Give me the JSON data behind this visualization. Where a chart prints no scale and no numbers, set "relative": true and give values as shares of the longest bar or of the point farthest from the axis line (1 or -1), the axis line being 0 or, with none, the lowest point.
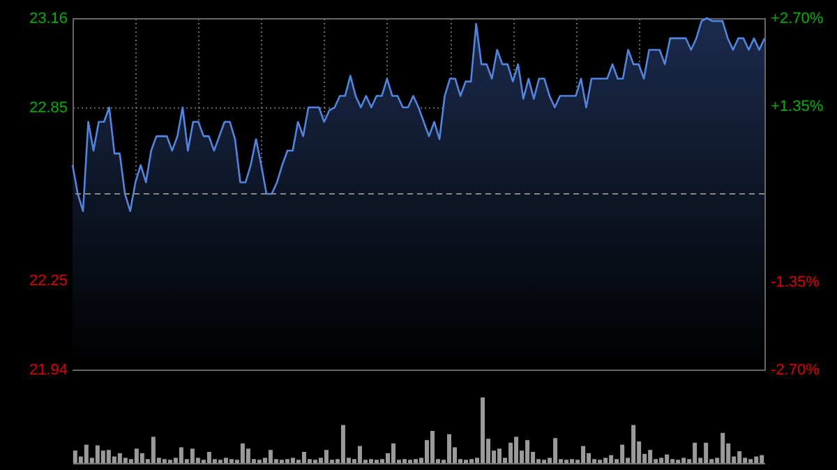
{
  "chart_data": [
    {
      "type": "area",
      "categories": [
        null,
        null,
        null,
        null,
        null,
        null,
        null,
        null,
        null,
        null,
        null,
        null,
        null,
        null,
        null,
        null,
        null,
        null,
        null,
        null,
        null,
        null,
        null,
        null,
        null,
        null,
        null,
        null,
        null,
        null,
        null,
        null,
        null,
        null,
        null,
        null,
        null,
        null,
        null,
        null,
        null,
        null,
        null,
        null,
        null,
        null,
        null,
        null,
        null,
        null,
        null,
        null,
        null,
        null,
        null,
        null,
        null,
        null,
        null,
        null,
        null,
        null,
        null,
        null,
        null,
        null,
        null,
        null,
        null,
        null,
        null,
        null,
        null,
        null,
        null,
        null,
        null,
        null,
        null,
        null,
        null,
        null,
        null,
        null,
        null,
        null,
        null,
        null,
        null,
        null,
        null,
        null,
        null,
        null,
        null,
        null,
        null,
        null,
        null,
        null,
        null,
        null,
        null,
        null,
        null,
        null,
        null,
        null,
        null,
        null,
        null,
        null,
        null,
        null,
        null,
        null,
        null,
        null,
        null,
        null,
        null,
        null,
        null,
        null,
        null,
        null,
        null,
        null,
        null,
        null,
        null,
        null,
        null
      ],
      "ylim": [
        21.94,
        23.16
      ],
      "yticks": [
        21.94,
        22.25,
        22.85,
        23.16
      ],
      "y2lim": [
        -2.7,
        2.7
      ],
      "y2ticks": [
        {
          "value": -2.7,
          "label": "-2.70%"
        },
        {
          "value": -1.35,
          "label": "-1.35%"
        },
        {
          "value": 1.35,
          "label": "+1.35%"
        },
        {
          "value": 2.7,
          "label": "+2.70%"
        }
      ],
      "grid": true,
      "tick_labels": "y",
      "ref_lines": [
        {
          "axis": "y",
          "value": 22.55,
          "line_style": "dashed"
        }
      ],
      "series": [
        {
          "color": "#4f86e0",
          "values": [
            22.65,
            22.55,
            22.49,
            22.8,
            22.7,
            22.8,
            22.8,
            22.85,
            22.69,
            22.69,
            22.55,
            22.49,
            22.59,
            22.65,
            22.59,
            22.7,
            22.75,
            22.75,
            22.75,
            22.7,
            22.75,
            22.85,
            22.7,
            22.8,
            22.8,
            22.75,
            22.75,
            22.7,
            22.75,
            22.8,
            22.8,
            22.74,
            22.59,
            22.59,
            22.65,
            22.74,
            22.65,
            22.55,
            22.55,
            22.59,
            22.65,
            22.7,
            22.7,
            22.8,
            22.75,
            22.85,
            22.85,
            22.85,
            22.8,
            22.84,
            22.85,
            22.89,
            22.89,
            22.96,
            22.89,
            22.85,
            22.89,
            22.85,
            22.89,
            22.89,
            22.95,
            22.89,
            22.89,
            22.85,
            22.85,
            22.89,
            22.85,
            22.8,
            22.75,
            22.8,
            22.74,
            22.89,
            22.95,
            22.95,
            22.89,
            22.94,
            22.94,
            23.14,
            23,
            23,
            22.95,
            23.05,
            23,
            23,
            22.94,
            23,
            22.88,
            22.95,
            22.88,
            22.95,
            22.95,
            22.89,
            22.85,
            22.89,
            22.89,
            22.89,
            22.89,
            22.95,
            22.85,
            22.95,
            22.95,
            22.95,
            22.95,
            23,
            22.95,
            22.95,
            23.05,
            23,
            23,
            22.95,
            23.05,
            23.05,
            23.05,
            23,
            23.09,
            23.09,
            23.09,
            23.09,
            23.05,
            23.09,
            23.15,
            23.16,
            23.15,
            23.15,
            23.15,
            23.09,
            23.05,
            23.09,
            23.09,
            23.05,
            23.09,
            23.05,
            23.09
          ]
        }
      ]
    },
    {
      "type": "bar",
      "relative": true,
      "tick_labels": false,
      "categories": [
        null,
        null,
        null,
        null,
        null,
        null,
        null,
        null,
        null,
        null,
        null,
        null,
        null,
        null,
        null,
        null,
        null,
        null,
        null,
        null,
        null,
        null,
        null,
        null,
        null,
        null,
        null,
        null,
        null,
        null,
        null,
        null,
        null,
        null,
        null,
        null,
        null,
        null,
        null,
        null,
        null,
        null,
        null,
        null,
        null,
        null,
        null,
        null,
        null,
        null,
        null,
        null,
        null,
        null,
        null,
        null,
        null,
        null,
        null,
        null,
        null,
        null,
        null,
        null,
        null,
        null,
        null,
        null,
        null,
        null,
        null,
        null,
        null,
        null,
        null,
        null,
        null,
        null,
        null,
        null,
        null,
        null,
        null,
        null,
        null,
        null,
        null,
        null,
        null,
        null,
        null,
        null,
        null,
        null,
        null,
        null,
        null,
        null,
        null,
        null,
        null,
        null,
        null,
        null,
        null,
        null,
        null,
        null,
        null,
        null,
        null,
        null,
        null,
        null,
        null,
        null,
        null,
        null,
        null,
        null,
        null,
        null,
        null,
        null
      ],
      "series": [
        {
          "color": "#9a9a9a",
          "values": [
            0.19,
            0.1,
            0.28,
            0.08,
            0.27,
            0.19,
            0.2,
            0.1,
            0.15,
            0.08,
            0.06,
            0.22,
            0.15,
            0.06,
            0.4,
            0.08,
            0.06,
            0.05,
            0.08,
            0.24,
            0.06,
            0.22,
            0.08,
            0.05,
            0.17,
            0.06,
            0.05,
            0.08,
            0.06,
            0.05,
            0.3,
            0.22,
            0.06,
            0.05,
            0.08,
            0.2,
            0.06,
            0.05,
            0.06,
            0.08,
            0.05,
            0.17,
            0.06,
            0.05,
            0.08,
            0.2,
            0.05,
            0.06,
            0.58,
            0.08,
            0.06,
            0.26,
            0.05,
            0.06,
            0.05,
            0.06,
            0.15,
            0.3,
            0.05,
            0.06,
            0.05,
            0.06,
            0.08,
            0.35,
            0.49,
            0.06,
            0.05,
            0.44,
            0.24,
            0.06,
            0.05,
            0.06,
            0.08,
            1,
            0.37,
            0.19,
            0.22,
            0.08,
            0.31,
            0.4,
            0.19,
            0.35,
            0.17,
            0.06,
            0.05,
            0.08,
            0.38,
            0.06,
            0.05,
            0.06,
            0.05,
            0.26,
            0.15,
            0.06,
            0.05,
            0.08,
            0.12,
            0.06,
            0.28,
            0.08,
            0.58,
            0.33,
            0.14,
            0.2,
            0.06,
            0.08,
            0.13,
            0.06,
            0.05,
            0.08,
            0.06,
            0.31,
            0.08,
            0.31,
            0.06,
            0.08,
            0.46,
            0.3,
            0.1,
            0.18,
            0.08,
            0.06,
            0.1,
            0.12
          ]
        }
      ]
    }
  ]
}
